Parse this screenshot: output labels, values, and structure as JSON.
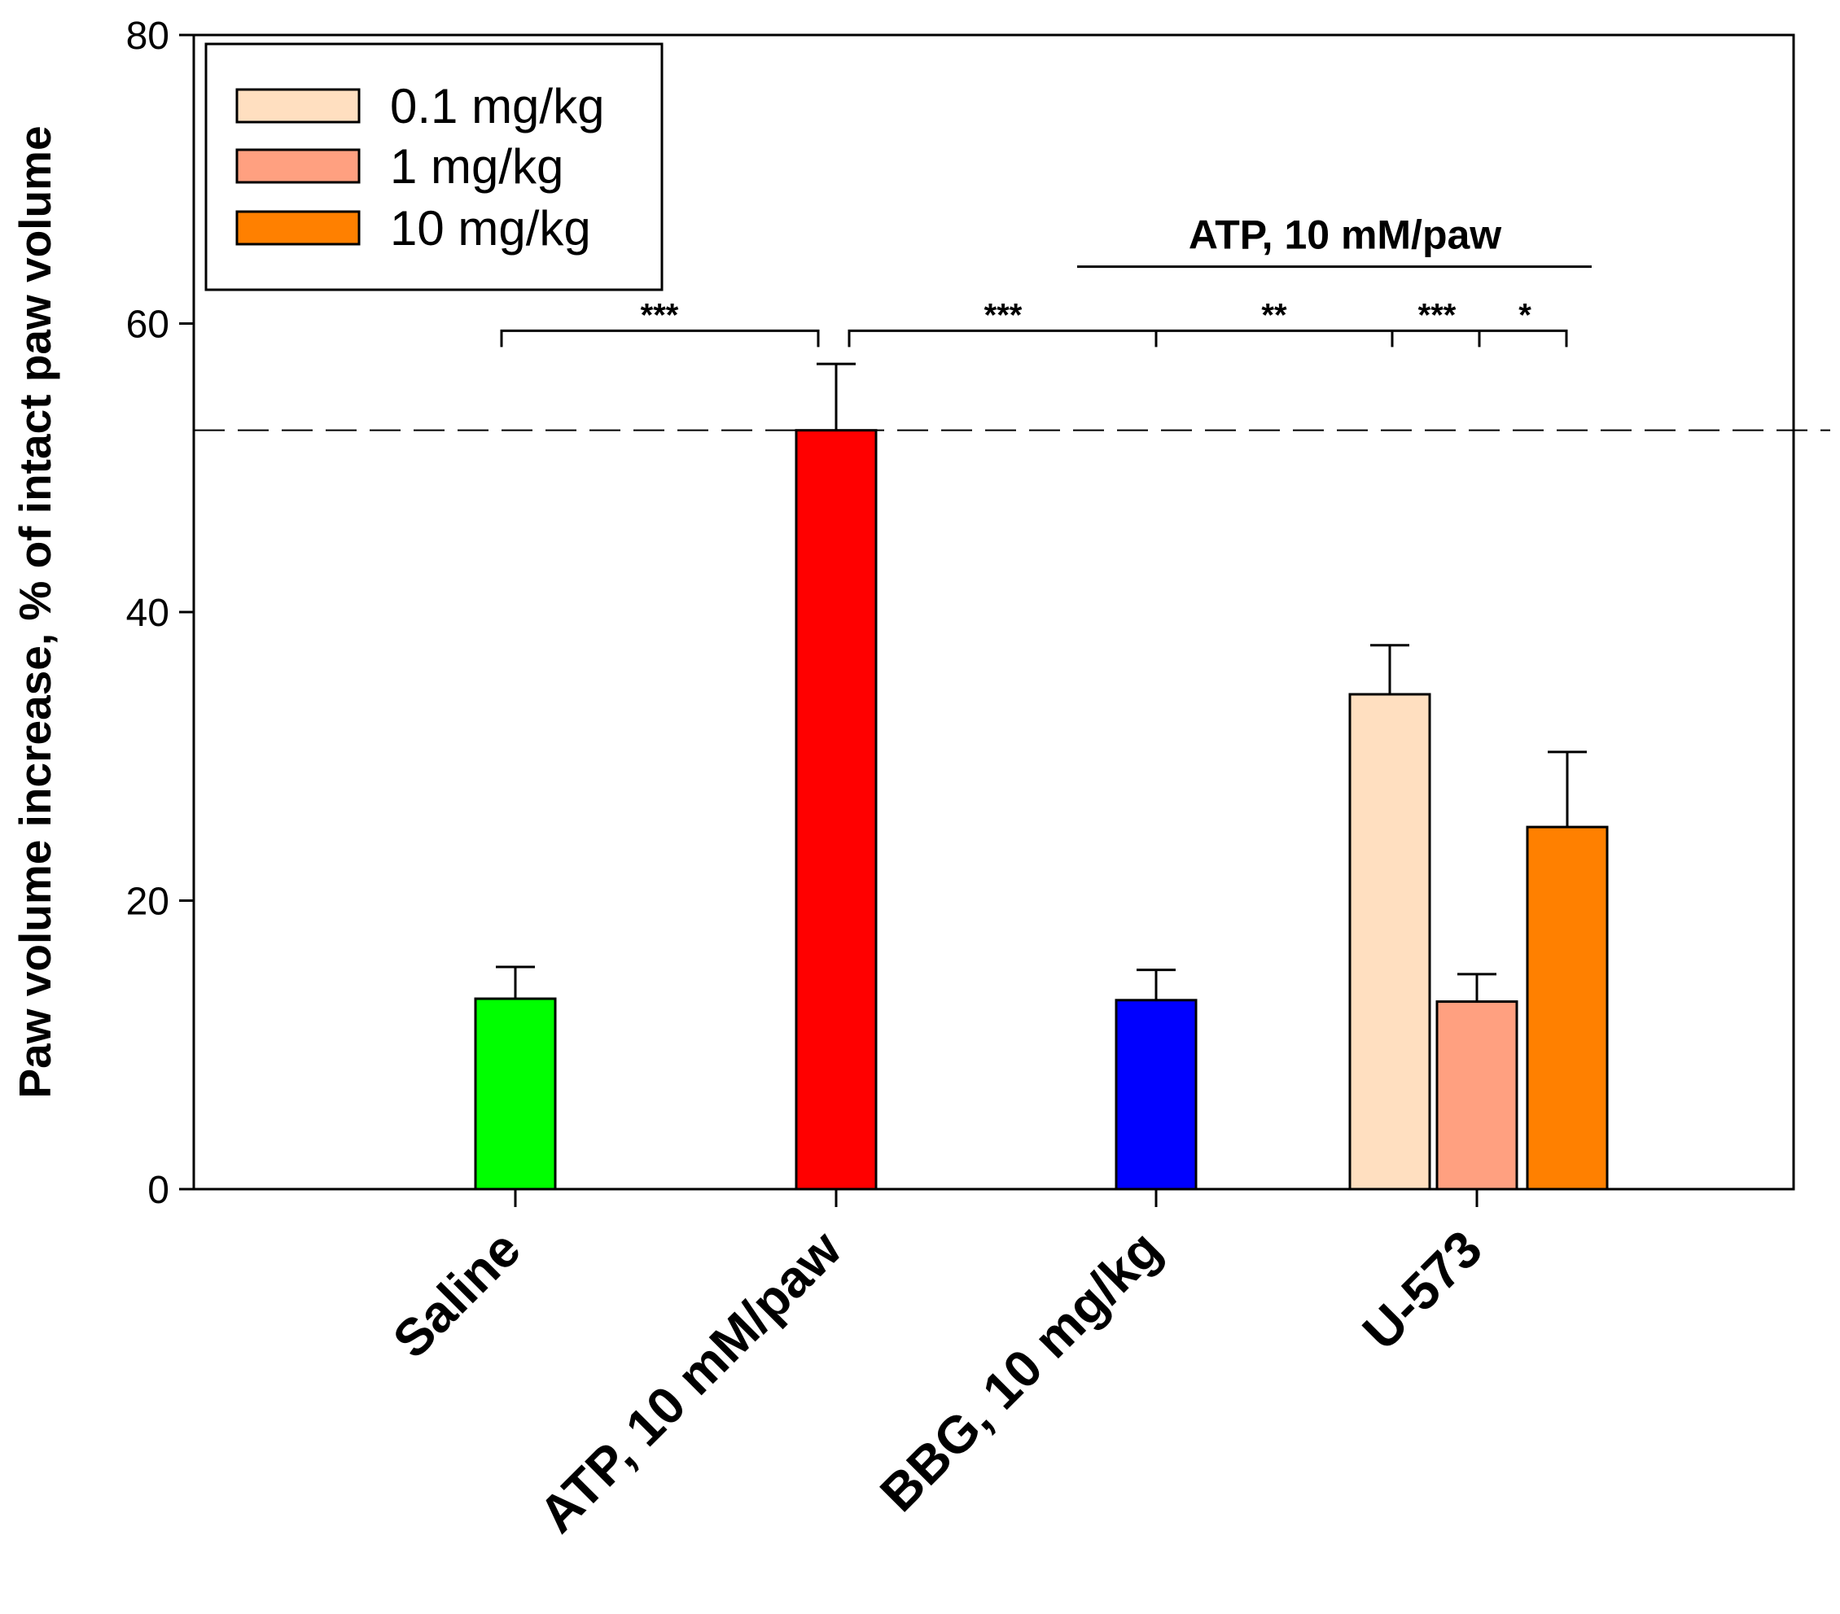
{
  "chart_data": {
    "type": "bar",
    "ylabel": "Paw volume increase, % of intact paw volume",
    "ylim": [
      0,
      80
    ],
    "yticks": [
      0,
      20,
      40,
      60,
      80
    ],
    "categories": [
      "Saline",
      "ATP, 10 mM/paw",
      "BBG, 10 mg/kg",
      "U-573"
    ],
    "bars": [
      {
        "category": "Saline",
        "group": "",
        "value": 13.2,
        "error": 2.2,
        "color": "#00ff00"
      },
      {
        "category": "ATP, 10 mM/paw",
        "group": "",
        "value": 52.6,
        "error": 4.6,
        "color": "#ff0000"
      },
      {
        "category": "BBG, 10 mg/kg",
        "group": "",
        "value": 13.1,
        "error": 2.1,
        "color": "#0000ff"
      },
      {
        "category": "U-573",
        "group": "0.1 mg/kg",
        "value": 34.3,
        "error": 3.4,
        "color": "#ffdfc0"
      },
      {
        "category": "U-573",
        "group": "1 mg/kg",
        "value": 13.0,
        "error": 1.9,
        "color": "#ffa080"
      },
      {
        "category": "U-573",
        "group": "10 mg/kg",
        "value": 25.1,
        "error": 5.2,
        "color": "#ff8000"
      }
    ],
    "legend": {
      "position": "top-left",
      "entries": [
        {
          "label": "0.1 mg/kg",
          "color": "#ffdfc0"
        },
        {
          "label": "1 mg/kg",
          "color": "#ffa080"
        },
        {
          "label": "10 mg/kg",
          "color": "#ff8000"
        }
      ]
    },
    "reference_line": {
      "value": 52.6,
      "style": "dashed"
    },
    "annotations": {
      "group_bracket": {
        "label": "ATP, 10 mM/paw",
        "value": 64
      },
      "significance": [
        {
          "label": "***",
          "from": 0,
          "to": 1,
          "value": 59.5
        },
        {
          "label": "***",
          "from": 1,
          "to": 2,
          "value": 59.5
        },
        {
          "label": "**",
          "from": 2,
          "to": 3,
          "value": 59.5
        },
        {
          "label": "***",
          "from": 3,
          "to": 4,
          "value": 59.5
        },
        {
          "label": "*",
          "from": 4,
          "to": 5,
          "value": 59.5
        }
      ]
    }
  }
}
